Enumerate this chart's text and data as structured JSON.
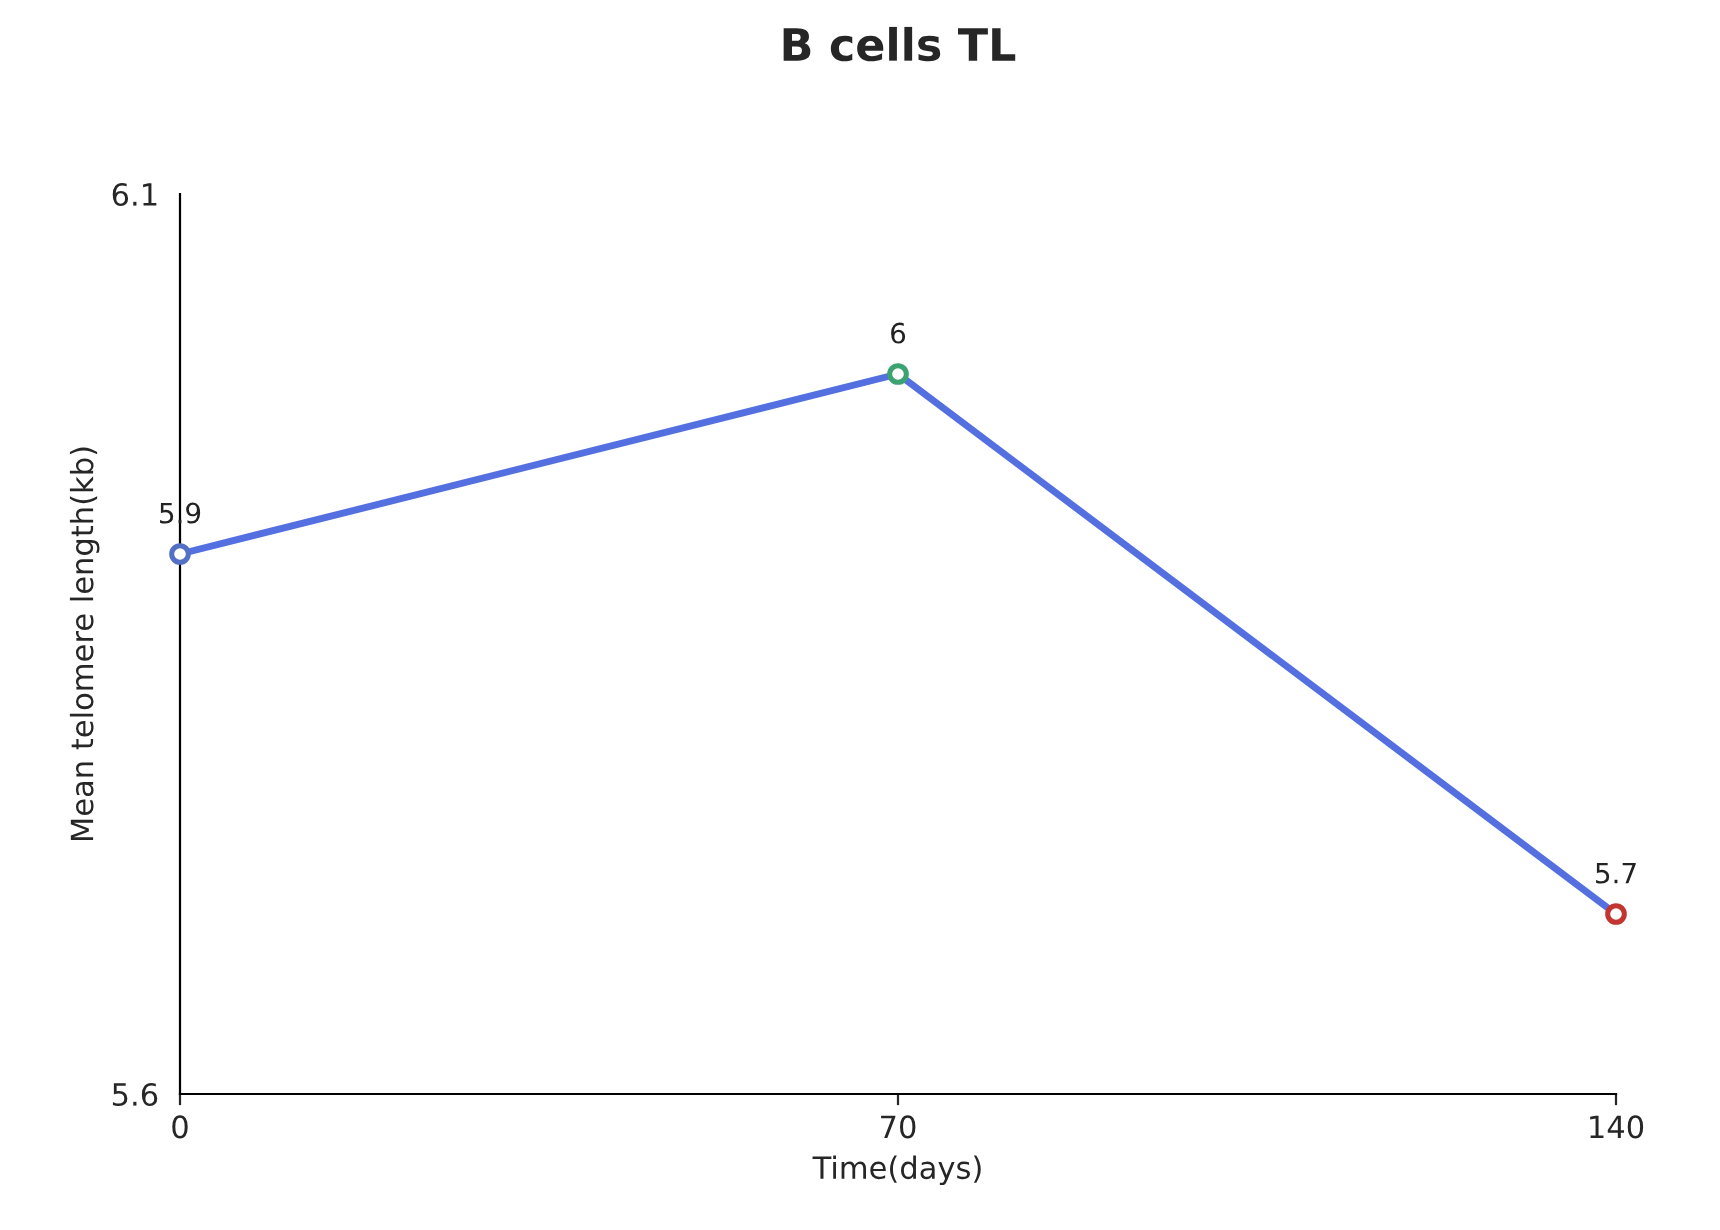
{
  "chart_data": {
    "type": "line",
    "title": "B cells TL",
    "xlabel": "Time(days)",
    "ylabel": "Mean telomere length(kb)",
    "x": [
      0,
      70,
      140
    ],
    "series": [
      {
        "color": "#5470e0",
        "colors": [
          "#5470c6",
          "#3ba272",
          "#c23531"
        ],
        "values": [
          5.9,
          6,
          5.7
        ]
      }
    ],
    "xlim": [
      0,
      140
    ],
    "xticks": [
      0,
      70,
      140
    ],
    "ylim": [
      5.6,
      6.1
    ],
    "yticks": [
      5.6,
      6.1
    ],
    "data_labels": true,
    "marker": "circle",
    "line_style": "solid",
    "grid": false
  }
}
